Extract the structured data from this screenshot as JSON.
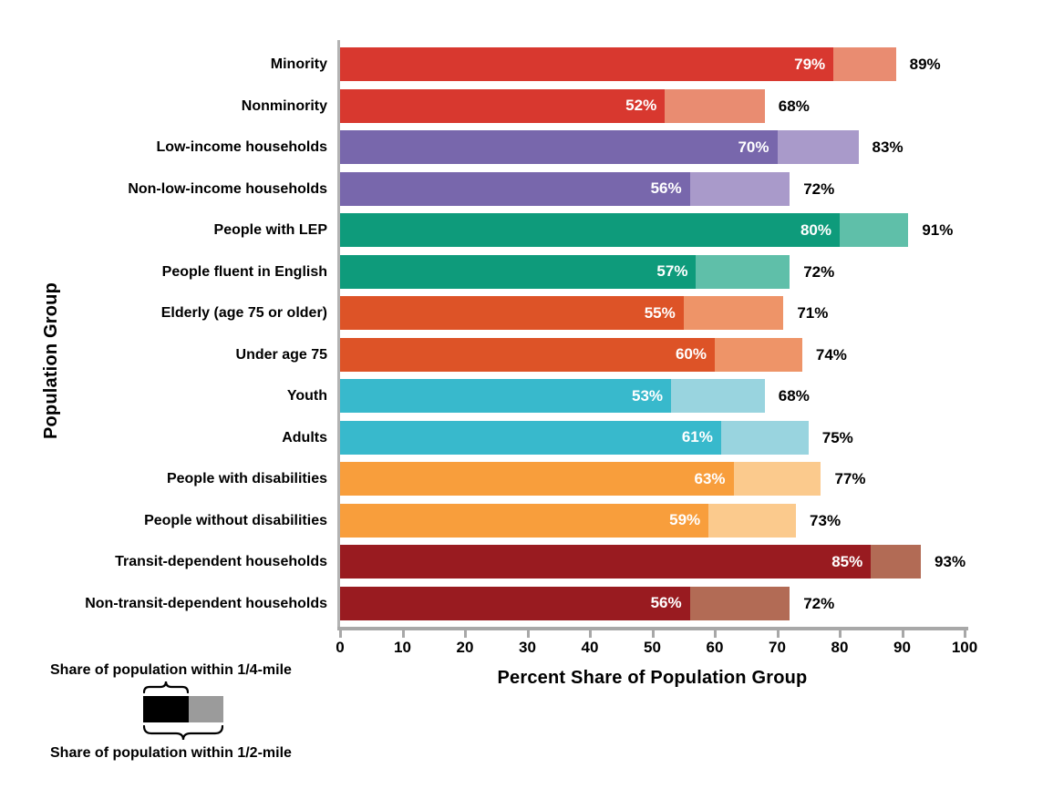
{
  "chart_data": {
    "type": "bar",
    "orientation": "horizontal",
    "title": "",
    "xlabel": "Percent Share of Population Group",
    "ylabel": "Population Group",
    "xlim": [
      0,
      100
    ],
    "xticks": [
      0,
      10,
      20,
      30,
      40,
      50,
      60,
      70,
      80,
      90,
      100
    ],
    "grid": false,
    "legend_position": "bottom-left",
    "value_suffix": "%",
    "categories": [
      "Minority",
      "Nonminority",
      "Low-income households",
      "Non-low-income households",
      "People with LEP",
      "People fluent in English",
      "Elderly (age 75 or older)",
      "Under age 75",
      "Youth",
      "Adults",
      "People with disabilities",
      "People without disabilities",
      "Transit-dependent households",
      "Non-transit-dependent households"
    ],
    "series": [
      {
        "name": "Share of population within 1/4-mile",
        "values": [
          79,
          52,
          70,
          56,
          80,
          57,
          55,
          60,
          53,
          61,
          63,
          59,
          85,
          56
        ]
      },
      {
        "name": "Share of population within 1/2-mile",
        "values": [
          89,
          68,
          83,
          72,
          91,
          72,
          71,
          74,
          68,
          75,
          77,
          73,
          93,
          72
        ]
      }
    ],
    "row_colors": [
      {
        "dark": "#d8382f",
        "light": "#e98c71"
      },
      {
        "dark": "#d8382f",
        "light": "#e98c71"
      },
      {
        "dark": "#7867ac",
        "light": "#a99aca"
      },
      {
        "dark": "#7867ac",
        "light": "#a99aca"
      },
      {
        "dark": "#0e9b7b",
        "light": "#5fbfa9"
      },
      {
        "dark": "#0e9b7b",
        "light": "#5fbfa9"
      },
      {
        "dark": "#dd5327",
        "light": "#ee9468"
      },
      {
        "dark": "#dd5327",
        "light": "#ee9468"
      },
      {
        "dark": "#38b9cc",
        "light": "#99d4df"
      },
      {
        "dark": "#38b9cc",
        "light": "#99d4df"
      },
      {
        "dark": "#f89e3c",
        "light": "#fbca8d"
      },
      {
        "dark": "#f89e3c",
        "light": "#fbca8d"
      },
      {
        "dark": "#991b20",
        "light": "#b26b55"
      },
      {
        "dark": "#991b20",
        "light": "#b26b55"
      }
    ],
    "axis_color": "#a8a8a8",
    "bar_value_text_color_inside": "#ffffff",
    "bar_value_text_color_outside": "#000000"
  },
  "legend": {
    "quarter_label": "Share of population within 1/4-mile",
    "half_label": "Share of population within 1/2-mile",
    "swatch_dark_color": "#000000",
    "swatch_light_color": "#9b9b9b"
  }
}
